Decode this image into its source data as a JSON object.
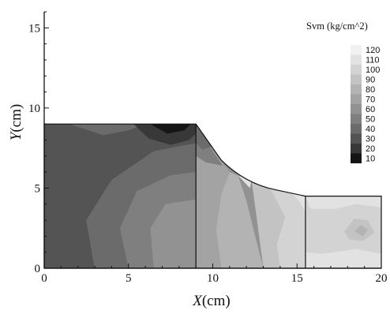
{
  "chart_data": {
    "type": "heatmap",
    "title": "",
    "xlabel_var": "X",
    "xlabel_unit": "(cm)",
    "ylabel_var": "Y",
    "ylabel_unit": "(cm)",
    "xlim": [
      0,
      20
    ],
    "ylim": [
      0,
      16
    ],
    "x_ticks": [
      "0",
      "5",
      "10",
      "15",
      "20"
    ],
    "y_ticks": [
      "0",
      "5",
      "10",
      "15"
    ],
    "grid": false,
    "legend": {
      "title": "Svm (kg/cm^2)",
      "position": "top-right",
      "levels": [
        120,
        110,
        100,
        90,
        80,
        70,
        60,
        50,
        40,
        30,
        20,
        10
      ],
      "colors": [
        "#f1f1f1",
        "#e2e2e2",
        "#d3d3d3",
        "#c3c3c3",
        "#b3b3b3",
        "#a3a3a3",
        "#929292",
        "#7f7f7f",
        "#6b6b6b",
        "#545454",
        "#383838",
        "#151515"
      ]
    },
    "domain_outline": [
      [
        0,
        9
      ],
      [
        9,
        9
      ],
      [
        11,
        6
      ],
      [
        15.5,
        4.5
      ],
      [
        20,
        4.5
      ],
      [
        20,
        0
      ],
      [
        0,
        0
      ]
    ],
    "section_boundaries": [
      {
        "x": 9,
        "y_top": 9
      },
      {
        "x": 15.5,
        "y_top": 4.5
      }
    ],
    "contour_regions": [
      {
        "level": 30,
        "polygon": [
          [
            0,
            0
          ],
          [
            3,
            0
          ],
          [
            2.5,
            3
          ],
          [
            4,
            5.5
          ],
          [
            6.5,
            7.3
          ],
          [
            9,
            7.8
          ],
          [
            9,
            9
          ],
          [
            0,
            9
          ]
        ]
      },
      {
        "level": 40,
        "polygon": [
          [
            1.5,
            9
          ],
          [
            3.5,
            8.3
          ],
          [
            5,
            8.6
          ],
          [
            6,
            9
          ]
        ]
      },
      {
        "level": 20,
        "polygon": [
          [
            5.3,
            9
          ],
          [
            6.2,
            8.1
          ],
          [
            7.5,
            7.7
          ],
          [
            8.6,
            8
          ],
          [
            9,
            8.4
          ],
          [
            9,
            9
          ]
        ]
      },
      {
        "level": 10,
        "polygon": [
          [
            6.3,
            9
          ],
          [
            7.3,
            8.4
          ],
          [
            8.3,
            8.6
          ],
          [
            8.7,
            9
          ]
        ]
      },
      {
        "level": 40,
        "polygon": [
          [
            3,
            0
          ],
          [
            5,
            0
          ],
          [
            4.5,
            2.5
          ],
          [
            5.5,
            4.8
          ],
          [
            7.5,
            5.8
          ],
          [
            9,
            6
          ],
          [
            9,
            7.8
          ],
          [
            6.5,
            7.3
          ],
          [
            4,
            5.5
          ],
          [
            2.5,
            3
          ]
        ]
      },
      {
        "level": 50,
        "polygon": [
          [
            5,
            0
          ],
          [
            6.5,
            0
          ],
          [
            6.3,
            2.5
          ],
          [
            7.2,
            4
          ],
          [
            9,
            4.3
          ],
          [
            9,
            6
          ],
          [
            7.5,
            5.8
          ],
          [
            5.5,
            4.8
          ],
          [
            4.5,
            2.5
          ]
        ]
      },
      {
        "level": 60,
        "polygon": [
          [
            6.5,
            0
          ],
          [
            9,
            0
          ],
          [
            9,
            4.3
          ],
          [
            7.2,
            4
          ],
          [
            6.3,
            2.5
          ]
        ]
      },
      {
        "level": 70,
        "polygon": [
          [
            9,
            0
          ],
          [
            10.5,
            0
          ],
          [
            10.2,
            2.4
          ],
          [
            10.5,
            4.6
          ],
          [
            11,
            6
          ],
          [
            10,
            7.5
          ],
          [
            9,
            9
          ]
        ]
      },
      {
        "level": 50,
        "polygon": [
          [
            9,
            9
          ],
          [
            10.2,
            7
          ],
          [
            10.6,
            6.4
          ],
          [
            9.6,
            6.6
          ],
          [
            9,
            7
          ]
        ]
      },
      {
        "level": 40,
        "polygon": [
          [
            9,
            9
          ],
          [
            9.9,
            7.6
          ],
          [
            9.4,
            7.4
          ],
          [
            9,
            7.8
          ]
        ]
      },
      {
        "level": 80,
        "polygon": [
          [
            10.5,
            0
          ],
          [
            13,
            0
          ],
          [
            12.4,
            2.5
          ],
          [
            12,
            4.2
          ],
          [
            11.5,
            5.8
          ],
          [
            11,
            6
          ],
          [
            10.5,
            4.6
          ],
          [
            10.2,
            2.4
          ]
        ]
      },
      {
        "level": 90,
        "polygon": [
          [
            13,
            0
          ],
          [
            15.5,
            0
          ],
          [
            15.5,
            4.5
          ],
          [
            12.3,
            5.5
          ],
          [
            12.6,
            3.2
          ]
        ]
      },
      {
        "level": 100,
        "polygon": [
          [
            14,
            0
          ],
          [
            15.5,
            0
          ],
          [
            15.5,
            4.5
          ],
          [
            13.3,
            5.2
          ],
          [
            14.3,
            3.2
          ],
          [
            13.8,
            1.5
          ]
        ]
      },
      {
        "level": 110,
        "polygon": [
          [
            11.5,
            5.8
          ],
          [
            12.2,
            5
          ],
          [
            12.3,
            5.5
          ]
        ]
      },
      {
        "level": 110,
        "polygon": [
          [
            14.6,
            4.8
          ],
          [
            15.2,
            4.1
          ],
          [
            15.5,
            3.5
          ],
          [
            15.5,
            4.5
          ]
        ]
      },
      {
        "level": 100,
        "polygon": [
          [
            15.5,
            0
          ],
          [
            20,
            0
          ],
          [
            20,
            4.5
          ],
          [
            15.5,
            4.5
          ]
        ]
      },
      {
        "level": 110,
        "polygon": [
          [
            15.5,
            4.5
          ],
          [
            15.8,
            3.7
          ],
          [
            17.3,
            3.7
          ],
          [
            18.5,
            4
          ],
          [
            20,
            3.8
          ],
          [
            20,
            4.5
          ]
        ]
      },
      {
        "level": 110,
        "polygon": [
          [
            15.5,
            0
          ],
          [
            20,
            0
          ],
          [
            20,
            0.9
          ],
          [
            18.5,
            1.2
          ],
          [
            16.5,
            0.9
          ],
          [
            15.5,
            1
          ]
        ]
      },
      {
        "level": 90,
        "polygon": [
          [
            17.8,
            2.3
          ],
          [
            18.4,
            3.1
          ],
          [
            19.2,
            3.0
          ],
          [
            19.6,
            2.2
          ],
          [
            18.9,
            1.7
          ],
          [
            18.1,
            1.8
          ]
        ]
      },
      {
        "level": 80,
        "polygon": [
          [
            18.4,
            2.3
          ],
          [
            18.8,
            2.7
          ],
          [
            19.2,
            2.4
          ],
          [
            18.9,
            2.0
          ]
        ]
      }
    ]
  }
}
